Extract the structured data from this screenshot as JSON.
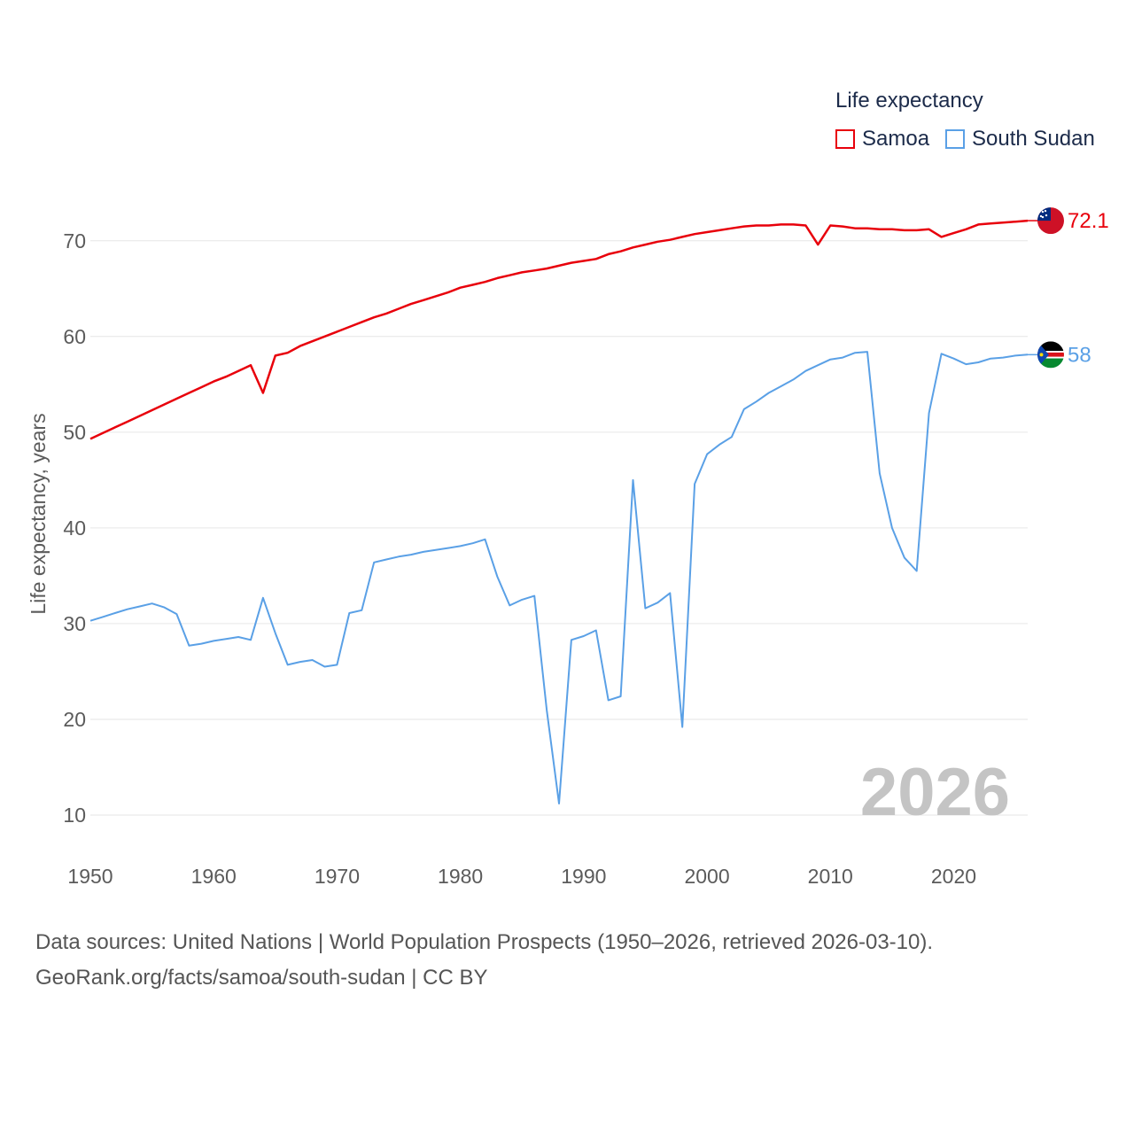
{
  "legend": {
    "title": "Life expectancy",
    "items": [
      {
        "label": "Samoa",
        "color": "#e8000b"
      },
      {
        "label": "South Sudan",
        "color": "#5aa0e6"
      }
    ]
  },
  "source": {
    "line1": "Data sources: United Nations | World Population Prospects (1950–2026, retrieved 2026-03-10).",
    "line2": "GeoRank.org/facts/samoa/south-sudan | CC BY"
  },
  "chart_data": {
    "type": "line",
    "title": "Life expectancy",
    "xlabel": "",
    "ylabel": "Life expectancy, years",
    "xlim": [
      1950,
      2026
    ],
    "ylim": [
      10,
      72.2
    ],
    "xticks": [
      1950,
      1960,
      1970,
      1980,
      1990,
      2000,
      2010,
      2020
    ],
    "yticks": [
      10,
      20,
      30,
      40,
      50,
      60,
      70
    ],
    "grid": true,
    "legend_position": "top-right",
    "year_label": "2026",
    "series": [
      {
        "name": "Samoa",
        "color": "#e8000b",
        "end_label": "72.1",
        "flag": "samoa",
        "x": [
          1950,
          1951,
          1952,
          1953,
          1954,
          1955,
          1956,
          1957,
          1958,
          1959,
          1960,
          1961,
          1962,
          1963,
          1964,
          1965,
          1966,
          1967,
          1968,
          1969,
          1970,
          1971,
          1972,
          1973,
          1974,
          1975,
          1976,
          1977,
          1978,
          1979,
          1980,
          1981,
          1982,
          1983,
          1984,
          1985,
          1986,
          1987,
          1988,
          1989,
          1990,
          1991,
          1992,
          1993,
          1994,
          1995,
          1996,
          1997,
          1998,
          1999,
          2000,
          2001,
          2002,
          2003,
          2004,
          2005,
          2006,
          2007,
          2008,
          2009,
          2010,
          2011,
          2012,
          2013,
          2014,
          2015,
          2016,
          2017,
          2018,
          2019,
          2020,
          2021,
          2022,
          2023,
          2024,
          2025,
          2026
        ],
        "values": [
          49.3,
          49.9,
          50.5,
          51.1,
          51.7,
          52.3,
          52.9,
          53.5,
          54.1,
          54.7,
          55.3,
          55.8,
          56.4,
          57.0,
          54.1,
          58.0,
          58.3,
          59.0,
          59.5,
          60.0,
          60.5,
          61.0,
          61.5,
          62.0,
          62.4,
          62.9,
          63.4,
          63.8,
          64.2,
          64.6,
          65.1,
          65.4,
          65.7,
          66.1,
          66.4,
          66.7,
          66.9,
          67.1,
          67.4,
          67.7,
          67.9,
          68.1,
          68.6,
          68.9,
          69.3,
          69.6,
          69.9,
          70.1,
          70.4,
          70.7,
          70.9,
          71.1,
          71.3,
          71.5,
          71.6,
          71.6,
          71.7,
          71.7,
          71.6,
          69.6,
          71.6,
          71.5,
          71.3,
          71.3,
          71.2,
          71.2,
          71.1,
          71.1,
          71.2,
          70.4,
          70.8,
          71.2,
          71.7,
          71.8,
          71.9,
          72.0,
          72.1
        ]
      },
      {
        "name": "South Sudan",
        "color": "#5aa0e6",
        "end_label": "58",
        "flag": "south-sudan",
        "x": [
          1950,
          1951,
          1952,
          1953,
          1954,
          1955,
          1956,
          1957,
          1958,
          1959,
          1960,
          1961,
          1962,
          1963,
          1964,
          1965,
          1966,
          1967,
          1968,
          1969,
          1970,
          1971,
          1972,
          1973,
          1974,
          1975,
          1976,
          1977,
          1978,
          1979,
          1980,
          1981,
          1982,
          1983,
          1984,
          1985,
          1986,
          1987,
          1988,
          1989,
          1990,
          1991,
          1992,
          1993,
          1994,
          1995,
          1996,
          1997,
          1998,
          1999,
          2000,
          2001,
          2002,
          2003,
          2004,
          2005,
          2006,
          2007,
          2008,
          2009,
          2010,
          2011,
          2012,
          2013,
          2014,
          2015,
          2016,
          2017,
          2018,
          2019,
          2020,
          2021,
          2022,
          2023,
          2024,
          2025,
          2026
        ],
        "values": [
          30.3,
          30.7,
          31.1,
          31.5,
          31.8,
          32.1,
          31.7,
          31.0,
          27.7,
          27.9,
          28.2,
          28.4,
          28.6,
          28.3,
          32.7,
          29.0,
          25.7,
          26.0,
          26.2,
          25.5,
          25.7,
          31.1,
          31.4,
          36.4,
          36.7,
          37.0,
          37.2,
          37.5,
          37.7,
          37.9,
          38.1,
          38.4,
          38.8,
          34.9,
          31.9,
          32.5,
          32.9,
          21.0,
          11.2,
          28.3,
          28.7,
          29.3,
          22.0,
          22.4,
          45.0,
          31.6,
          32.2,
          33.2,
          19.2,
          44.6,
          47.7,
          48.7,
          49.5,
          52.4,
          53.2,
          54.1,
          54.8,
          55.5,
          56.4,
          57.0,
          57.6,
          57.8,
          58.3,
          58.4,
          45.7,
          40.0,
          36.9,
          35.5,
          52.0,
          58.2,
          57.7,
          57.1,
          57.3,
          57.7,
          57.8,
          58.0,
          58.1
        ]
      }
    ]
  }
}
